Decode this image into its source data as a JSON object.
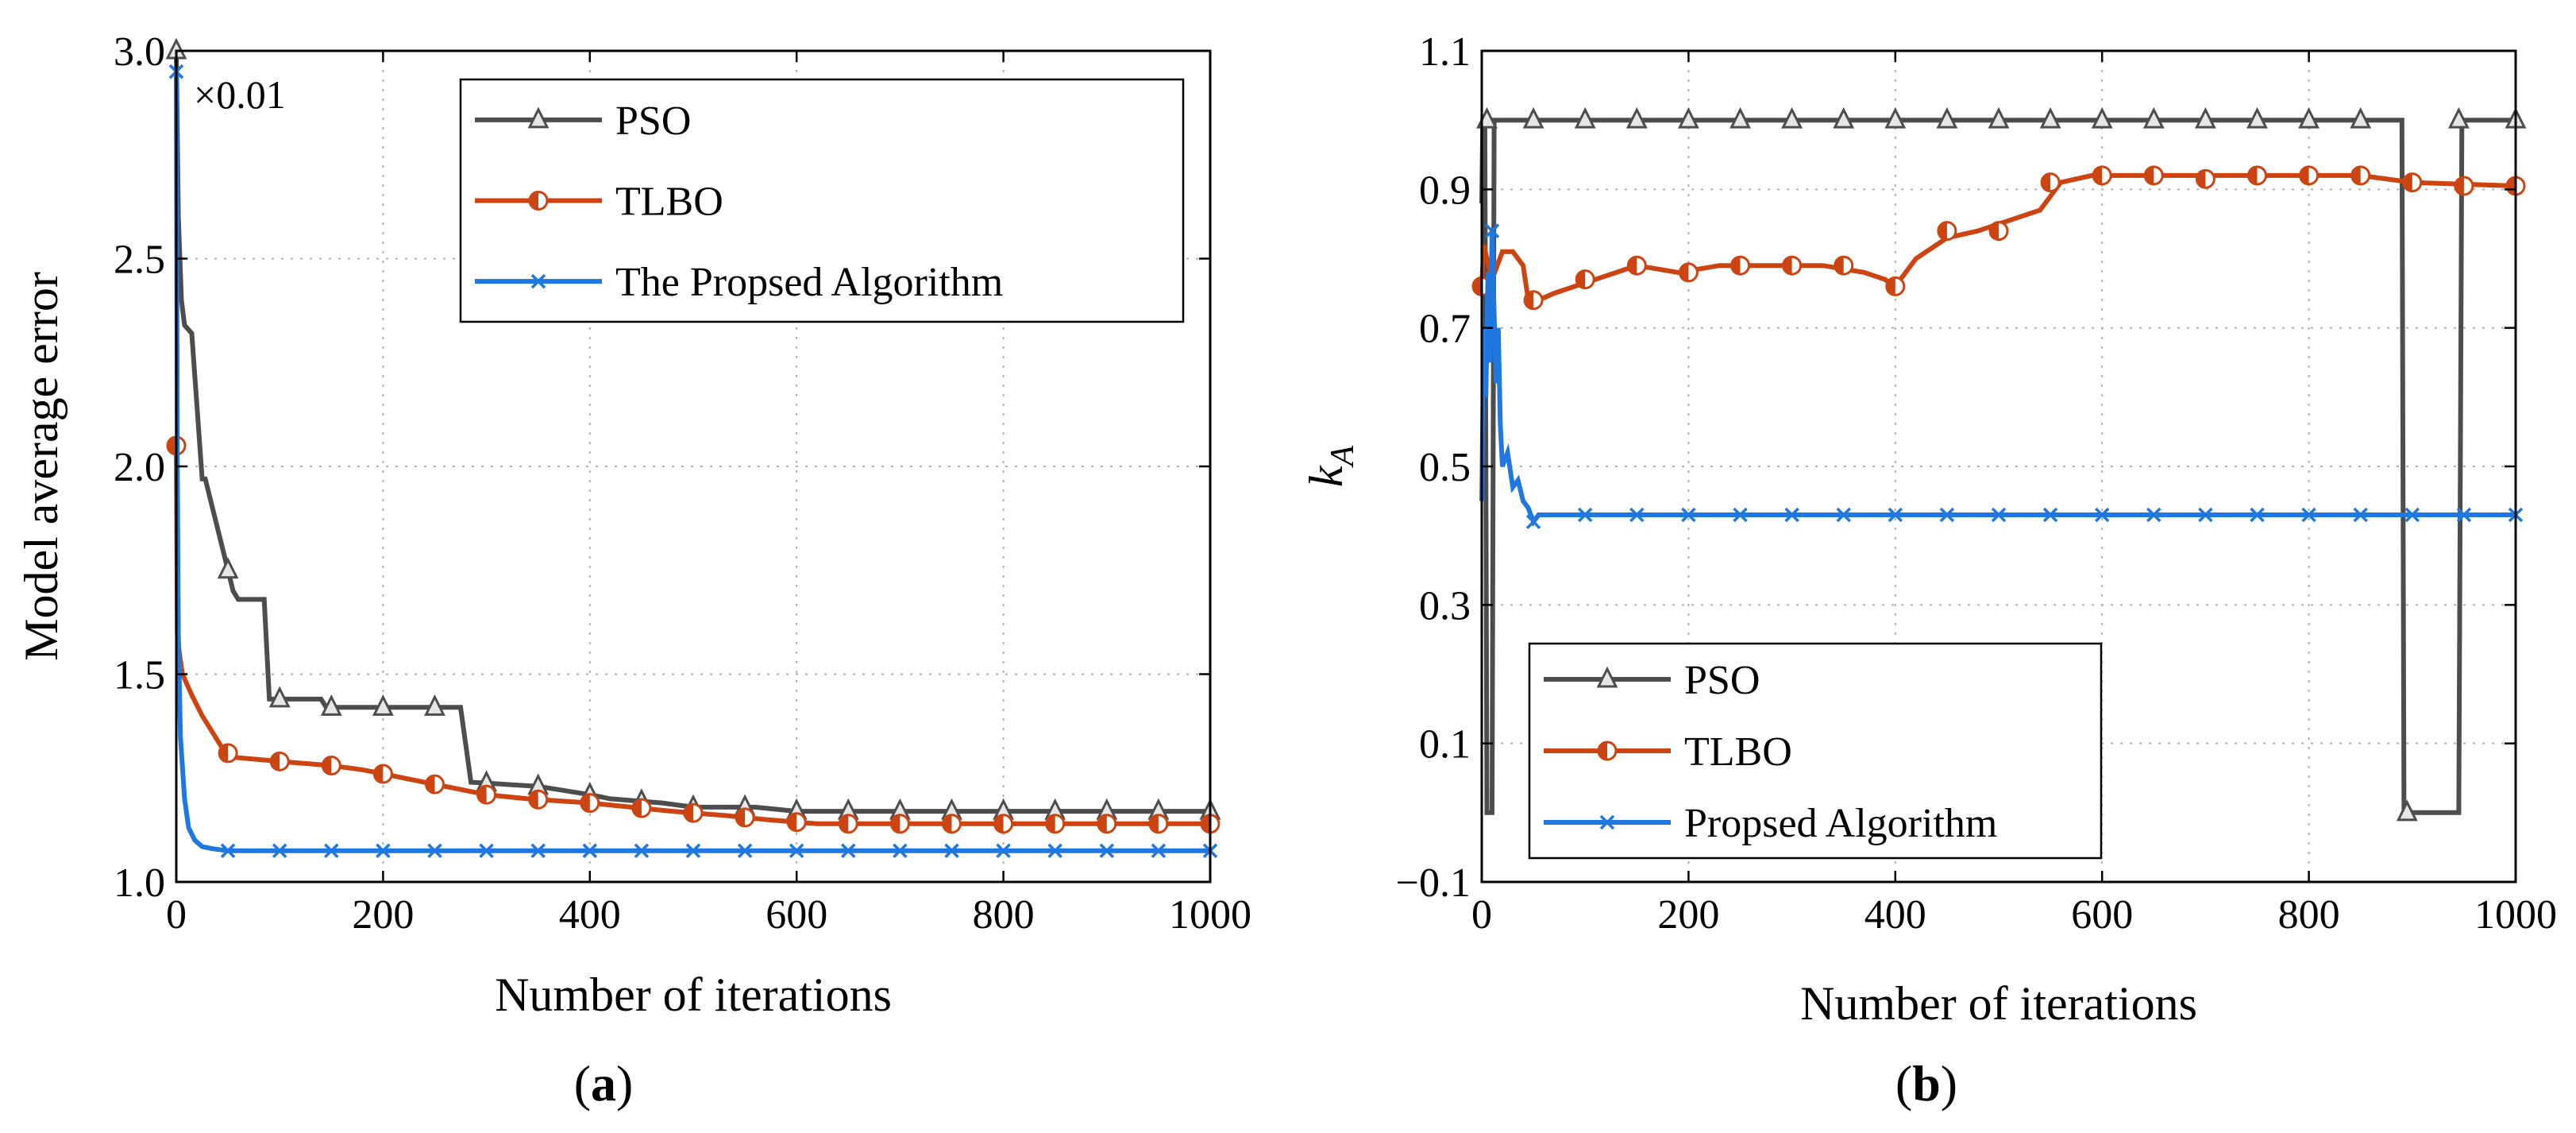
{
  "chart_data": [
    {
      "type": "line",
      "panel_label": "(a)",
      "xlabel": "Number of iterations",
      "ylabel": "Model average error",
      "multiplier": "×0.01",
      "xlim": [
        0,
        1000
      ],
      "ylim": [
        1.0,
        3.0
      ],
      "xticks": [
        "0",
        "200",
        "400",
        "600",
        "800",
        "1000"
      ],
      "yticks": [
        "1.0",
        "1.5",
        "2.0",
        "2.5",
        "3.0"
      ],
      "legend_position": "top-right",
      "series": [
        {
          "name": "PSO",
          "color": "#4d4d4d",
          "marker": "triangle",
          "x": [
            0,
            2,
            5,
            8,
            15,
            25,
            28,
            55,
            60,
            85,
            90,
            140,
            145,
            180,
            275,
            285,
            350,
            400,
            420,
            470,
            500,
            560,
            600,
            1000
          ],
          "y": [
            3.0,
            2.6,
            2.4,
            2.34,
            2.32,
            1.97,
            1.97,
            1.7,
            1.68,
            1.68,
            1.44,
            1.44,
            1.42,
            1.42,
            1.42,
            1.24,
            1.23,
            1.21,
            1.2,
            1.19,
            1.18,
            1.18,
            1.17,
            1.17
          ]
        },
        {
          "name": "TLBO",
          "color": "#cc4411",
          "marker": "half-circle",
          "x": [
            0,
            1,
            3,
            6,
            15,
            25,
            35,
            45,
            55,
            100,
            150,
            180,
            200,
            240,
            280,
            300,
            340,
            400,
            440,
            480,
            530,
            570,
            620,
            700,
            1000
          ],
          "y": [
            2.05,
            1.6,
            1.55,
            1.5,
            1.45,
            1.4,
            1.36,
            1.32,
            1.3,
            1.29,
            1.28,
            1.27,
            1.26,
            1.24,
            1.22,
            1.21,
            1.2,
            1.19,
            1.18,
            1.17,
            1.16,
            1.15,
            1.14,
            1.14,
            1.14
          ]
        },
        {
          "name": "The Propsed Algorithm",
          "color": "#1f77e0",
          "marker": "x",
          "x": [
            0,
            1,
            2,
            4,
            8,
            12,
            18,
            25,
            35,
            50,
            1000
          ],
          "y": [
            2.95,
            2.0,
            1.6,
            1.35,
            1.2,
            1.13,
            1.1,
            1.085,
            1.08,
            1.075,
            1.075
          ]
        }
      ]
    },
    {
      "type": "line",
      "panel_label": "(b)",
      "xlabel": "Number of iterations",
      "ylabel": "k",
      "ylabel_sub": "A",
      "xlim": [
        0,
        1000
      ],
      "ylim": [
        -0.1,
        1.1
      ],
      "xticks": [
        "0",
        "200",
        "400",
        "600",
        "800",
        "1000"
      ],
      "yticks": [
        "−0.1",
        "0.1",
        "0.3",
        "0.5",
        "0.7",
        "0.9",
        "1.1"
      ],
      "legend_position": "bottom-left",
      "series": [
        {
          "name": "PSO",
          "color": "#4d4d4d",
          "marker": "triangle",
          "x": [
            0,
            1,
            3,
            5,
            6,
            10,
            12,
            890,
            892,
            945,
            948,
            1000
          ],
          "y": [
            0.88,
            1.0,
            1.0,
            0.0,
            0.0,
            0.0,
            1.0,
            1.0,
            0.0,
            0.0,
            1.0,
            1.0
          ],
          "marker_x": [
            5,
            50,
            100,
            150,
            200,
            250,
            300,
            350,
            400,
            450,
            500,
            550,
            600,
            650,
            700,
            750,
            800,
            850,
            895,
            945,
            1000
          ],
          "marker_y": [
            1.0,
            1.0,
            1.0,
            1.0,
            1.0,
            1.0,
            1.0,
            1.0,
            1.0,
            1.0,
            1.0,
            1.0,
            1.0,
            1.0,
            1.0,
            1.0,
            1.0,
            1.0,
            0.0,
            1.0,
            1.0
          ]
        },
        {
          "name": "TLBO",
          "color": "#cc4411",
          "marker": "half-circle",
          "x": [
            0,
            2,
            5,
            10,
            20,
            30,
            40,
            45,
            55,
            70,
            90,
            110,
            150,
            190,
            230,
            280,
            330,
            370,
            390,
            400,
            420,
            450,
            480,
            520,
            540,
            560,
            590,
            620,
            680,
            760,
            850,
            900,
            1000
          ],
          "y": [
            0.76,
            0.82,
            0.8,
            0.77,
            0.81,
            0.81,
            0.79,
            0.74,
            0.74,
            0.75,
            0.76,
            0.77,
            0.79,
            0.78,
            0.79,
            0.79,
            0.79,
            0.78,
            0.77,
            0.76,
            0.8,
            0.83,
            0.84,
            0.86,
            0.87,
            0.91,
            0.92,
            0.92,
            0.92,
            0.92,
            0.92,
            0.91,
            0.905
          ],
          "marker_x": [
            0,
            50,
            100,
            150,
            200,
            250,
            300,
            350,
            400,
            450,
            500,
            550,
            600,
            650,
            700,
            750,
            800,
            850,
            900,
            950,
            1000
          ],
          "marker_y": [
            0.76,
            0.74,
            0.77,
            0.79,
            0.78,
            0.79,
            0.79,
            0.79,
            0.76,
            0.84,
            0.84,
            0.91,
            0.92,
            0.92,
            0.915,
            0.92,
            0.92,
            0.92,
            0.91,
            0.905,
            0.905
          ]
        },
        {
          "name": "Propsed Algorithm",
          "color": "#1f77e0",
          "marker": "x",
          "x": [
            0,
            2,
            4,
            6,
            8,
            10,
            12,
            14,
            16,
            18,
            20,
            25,
            30,
            35,
            40,
            45,
            50,
            55,
            60,
            1000
          ],
          "y": [
            0.45,
            0.7,
            0.6,
            0.78,
            0.65,
            0.84,
            0.72,
            0.62,
            0.7,
            0.56,
            0.5,
            0.52,
            0.47,
            0.48,
            0.45,
            0.44,
            0.42,
            0.43,
            0.43,
            0.43
          ],
          "marker_x": [
            10,
            50,
            100,
            150,
            200,
            250,
            300,
            350,
            400,
            450,
            500,
            550,
            600,
            650,
            700,
            750,
            800,
            850,
            900,
            950,
            1000
          ],
          "marker_y": [
            0.84,
            0.42,
            0.43,
            0.43,
            0.43,
            0.43,
            0.43,
            0.43,
            0.43,
            0.43,
            0.43,
            0.43,
            0.43,
            0.43,
            0.43,
            0.43,
            0.43,
            0.43,
            0.43,
            0.43,
            0.43
          ]
        }
      ]
    }
  ]
}
